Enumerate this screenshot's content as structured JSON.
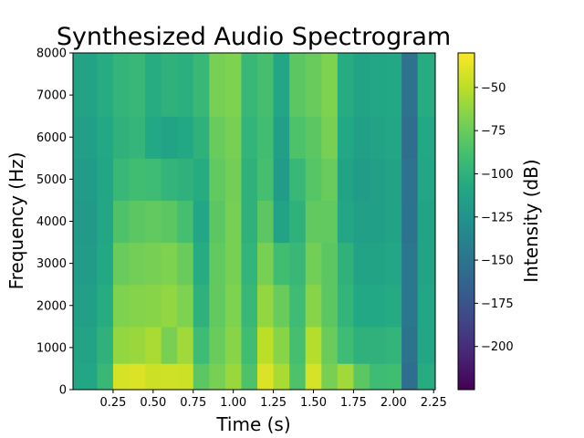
{
  "chart_data": {
    "type": "heatmap",
    "title": "Synthesized Audio Spectrogram",
    "xlabel": "Time (s)",
    "ylabel": "Frequency (Hz)",
    "colorbar_label": "Intensity (dB)",
    "colormap": "viridis",
    "xlim": [
      0.0,
      2.26
    ],
    "ylim": [
      0,
      8000
    ],
    "clim": [
      -225,
      -30
    ],
    "x_ticks": [
      0.25,
      0.5,
      0.75,
      1.0,
      1.25,
      1.5,
      1.75,
      2.0,
      2.25
    ],
    "x_tick_labels": [
      "0.25",
      "0.50",
      "0.75",
      "1.00",
      "1.25",
      "1.50",
      "1.75",
      "2.00",
      "2.25"
    ],
    "y_ticks": [
      0,
      1000,
      2000,
      3000,
      4000,
      5000,
      6000,
      7000,
      8000
    ],
    "y_tick_labels": [
      "0",
      "1000",
      "2000",
      "3000",
      "4000",
      "5000",
      "6000",
      "7000",
      "8000"
    ],
    "colorbar_ticks": [
      -50,
      -75,
      -100,
      -125,
      -150,
      -175,
      -200
    ],
    "colorbar_tick_labels": [
      "−50",
      "−75",
      "−100",
      "−125",
      "−150",
      "−175",
      "−200"
    ],
    "time_bins_s": [
      0.1,
      0.2,
      0.3,
      0.4,
      0.5,
      0.6,
      0.7,
      0.8,
      0.9,
      1.0,
      1.1,
      1.2,
      1.3,
      1.4,
      1.5,
      1.6,
      1.7,
      1.8,
      1.9,
      2.0,
      2.1,
      2.2
    ],
    "freq_bins_hz": [
      250,
      1000,
      2000,
      3000,
      4000,
      5000,
      6000,
      7000
    ],
    "intensity_db": [
      [
        -110,
        -112,
        -115,
        -118,
        -120,
        -118,
        -115,
        -112
      ],
      [
        -95,
        -100,
        -105,
        -108,
        -110,
        -110,
        -108,
        -105
      ],
      [
        -42,
        -62,
        -68,
        -75,
        -85,
        -95,
        -100,
        -98
      ],
      [
        -40,
        -60,
        -66,
        -72,
        -80,
        -90,
        -97,
        -95
      ],
      [
        -45,
        -55,
        -65,
        -70,
        -78,
        -92,
        -108,
        -105
      ],
      [
        -44,
        -70,
        -62,
        -68,
        -80,
        -98,
        -112,
        -100
      ],
      [
        -45,
        -58,
        -68,
        -75,
        -88,
        -100,
        -108,
        -102
      ],
      [
        -80,
        -92,
        -100,
        -105,
        -110,
        -105,
        -100,
        -95
      ],
      [
        -70,
        -75,
        -78,
        -78,
        -80,
        -78,
        -75,
        -70
      ],
      [
        -60,
        -65,
        -68,
        -70,
        -70,
        -72,
        -70,
        -68
      ],
      [
        -85,
        -90,
        -95,
        -98,
        -100,
        -100,
        -98,
        -95
      ],
      [
        -40,
        -50,
        -62,
        -70,
        -80,
        -88,
        -90,
        -88
      ],
      [
        -55,
        -65,
        -75,
        -90,
        -112,
        -118,
        -115,
        -110
      ],
      [
        -85,
        -88,
        -92,
        -95,
        -100,
        -95,
        -85,
        -80
      ],
      [
        -42,
        -52,
        -65,
        -72,
        -78,
        -82,
        -80,
        -75
      ],
      [
        -70,
        -75,
        -80,
        -80,
        -78,
        -75,
        -70,
        -68
      ],
      [
        -58,
        -92,
        -98,
        -100,
        -110,
        -112,
        -108,
        -105
      ],
      [
        -80,
        -100,
        -108,
        -112,
        -115,
        -118,
        -115,
        -112
      ],
      [
        -92,
        -100,
        -108,
        -112,
        -115,
        -115,
        -112,
        -110
      ],
      [
        -90,
        -98,
        -106,
        -110,
        -112,
        -112,
        -110,
        -108
      ],
      [
        -155,
        -150,
        -148,
        -148,
        -150,
        -152,
        -155,
        -152
      ],
      [
        -105,
        -110,
        -110,
        -112,
        -112,
        -110,
        -108,
        -105
      ]
    ]
  }
}
